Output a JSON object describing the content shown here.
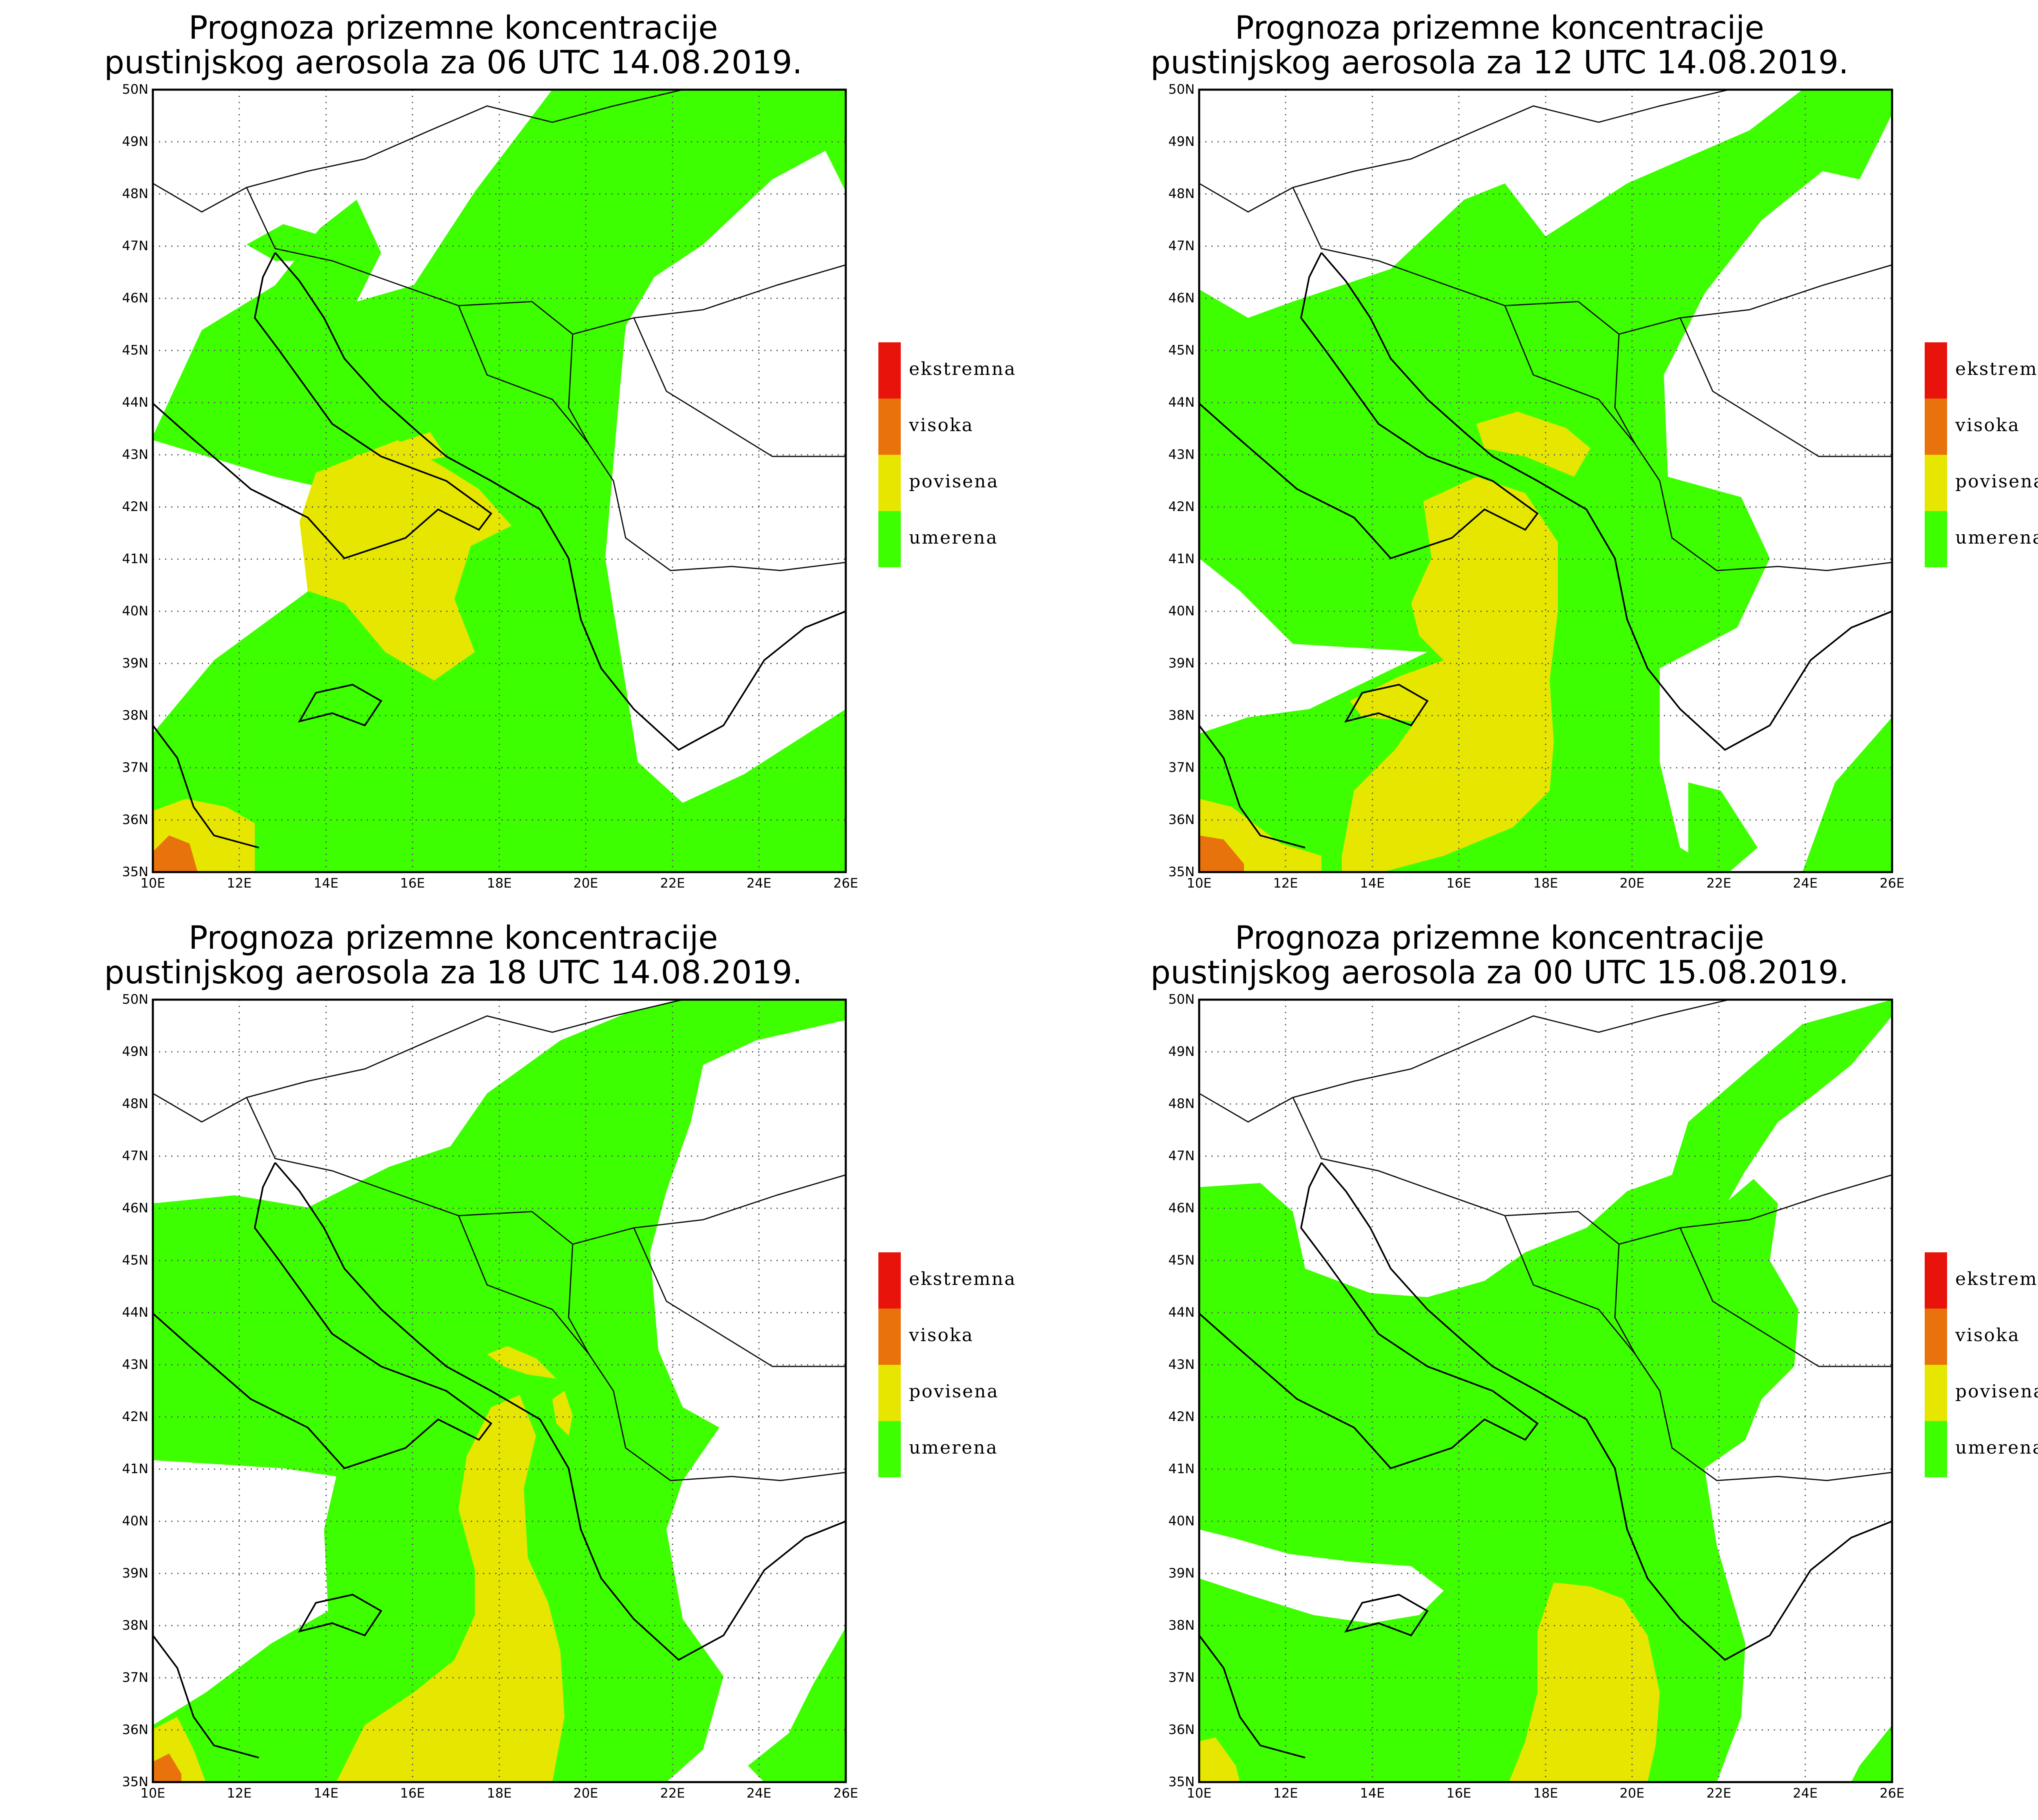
{
  "colors": {
    "umerena": "#3dff00",
    "povisena": "#e6e600",
    "visoka": "#e8720c",
    "ekstremna": "#e8140c"
  },
  "legend": [
    {
      "key": "ekstremna",
      "label": "ekstremna"
    },
    {
      "key": "visoka",
      "label": "visoka"
    },
    {
      "key": "povisena",
      "label": "povisena"
    },
    {
      "key": "umerena",
      "label": "umerena"
    }
  ],
  "axes": {
    "lat_labels": [
      "35N",
      "36N",
      "37N",
      "38N",
      "39N",
      "40N",
      "41N",
      "42N",
      "43N",
      "44N",
      "45N",
      "46N",
      "47N",
      "48N",
      "49N",
      "50N"
    ],
    "lon_labels": [
      "10E",
      "12E",
      "14E",
      "16E",
      "18E",
      "20E",
      "22E",
      "24E",
      "26E"
    ]
  },
  "panels": [
    {
      "id": "p1",
      "title_line1": "Prognoza prizemne koncentracije",
      "title_line2": "pustinjskog aerosola za 06 UTC 14.08.2019."
    },
    {
      "id": "p2",
      "title_line1": "Prognoza prizemne koncentracije",
      "title_line2": "pustinjskog aerosola za 12 UTC 14.08.2019."
    },
    {
      "id": "p3",
      "title_line1": "Prognoza prizemne koncentracije",
      "title_line2": "pustinjskog aerosola za 18 UTC 14.08.2019."
    },
    {
      "id": "p4",
      "title_line1": "Prognoza prizemne koncentracije",
      "title_line2": "pustinjskog aerosola za 00 UTC 15.08.2019."
    }
  ]
}
